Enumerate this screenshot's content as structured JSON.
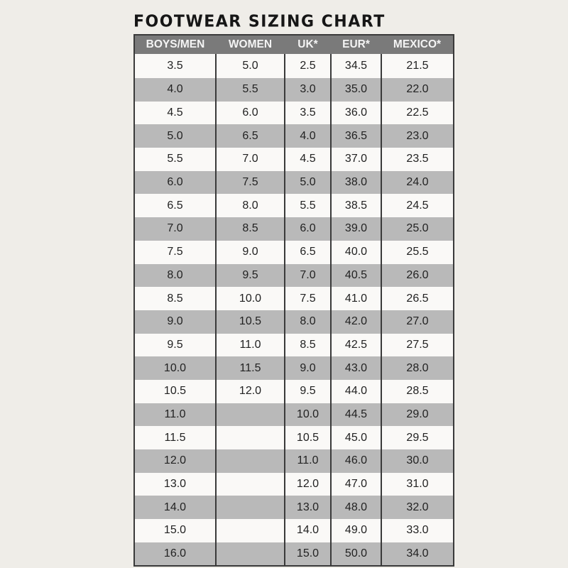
{
  "title": "FOOTWEAR SIZING CHART",
  "colors": {
    "header_bg": "#7a7a7a",
    "stripe": "#b9b9b9",
    "background": "#efede8"
  },
  "columns": [
    "BOYS/MEN",
    "WOMEN",
    "UK*",
    "EUR*",
    "MEXICO*"
  ],
  "rows": [
    [
      "3.5",
      "5.0",
      "2.5",
      "34.5",
      "21.5"
    ],
    [
      "4.0",
      "5.5",
      "3.0",
      "35.0",
      "22.0"
    ],
    [
      "4.5",
      "6.0",
      "3.5",
      "36.0",
      "22.5"
    ],
    [
      "5.0",
      "6.5",
      "4.0",
      "36.5",
      "23.0"
    ],
    [
      "5.5",
      "7.0",
      "4.5",
      "37.0",
      "23.5"
    ],
    [
      "6.0",
      "7.5",
      "5.0",
      "38.0",
      "24.0"
    ],
    [
      "6.5",
      "8.0",
      "5.5",
      "38.5",
      "24.5"
    ],
    [
      "7.0",
      "8.5",
      "6.0",
      "39.0",
      "25.0"
    ],
    [
      "7.5",
      "9.0",
      "6.5",
      "40.0",
      "25.5"
    ],
    [
      "8.0",
      "9.5",
      "7.0",
      "40.5",
      "26.0"
    ],
    [
      "8.5",
      "10.0",
      "7.5",
      "41.0",
      "26.5"
    ],
    [
      "9.0",
      "10.5",
      "8.0",
      "42.0",
      "27.0"
    ],
    [
      "9.5",
      "11.0",
      "8.5",
      "42.5",
      "27.5"
    ],
    [
      "10.0",
      "11.5",
      "9.0",
      "43.0",
      "28.0"
    ],
    [
      "10.5",
      "12.0",
      "9.5",
      "44.0",
      "28.5"
    ],
    [
      "11.0",
      "",
      "10.0",
      "44.5",
      "29.0"
    ],
    [
      "11.5",
      "",
      "10.5",
      "45.0",
      "29.5"
    ],
    [
      "12.0",
      "",
      "11.0",
      "46.0",
      "30.0"
    ],
    [
      "13.0",
      "",
      "12.0",
      "47.0",
      "31.0"
    ],
    [
      "14.0",
      "",
      "13.0",
      "48.0",
      "32.0"
    ],
    [
      "15.0",
      "",
      "14.0",
      "49.0",
      "33.0"
    ],
    [
      "16.0",
      "",
      "15.0",
      "50.0",
      "34.0"
    ]
  ]
}
